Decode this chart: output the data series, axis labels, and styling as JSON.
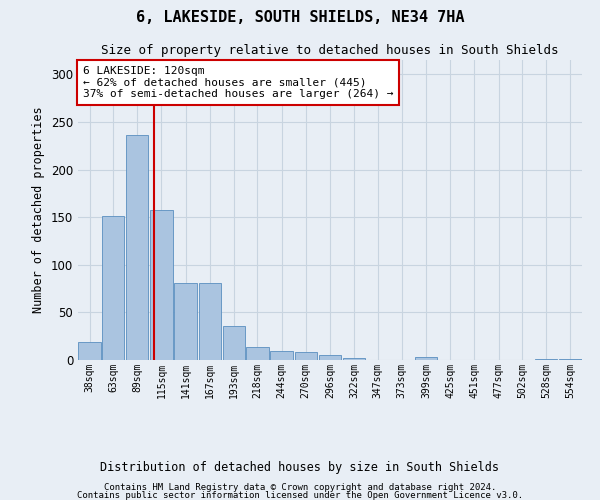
{
  "title": "6, LAKESIDE, SOUTH SHIELDS, NE34 7HA",
  "subtitle": "Size of property relative to detached houses in South Shields",
  "xlabel": "Distribution of detached houses by size in South Shields",
  "ylabel": "Number of detached properties",
  "footer_line1": "Contains HM Land Registry data © Crown copyright and database right 2024.",
  "footer_line2": "Contains public sector information licensed under the Open Government Licence v3.0.",
  "annotation_title": "6 LAKESIDE: 120sqm",
  "annotation_line1": "← 62% of detached houses are smaller (445)",
  "annotation_line2": "37% of semi-detached houses are larger (264) →",
  "property_sqm": 120,
  "bar_edges": [
    38,
    63,
    89,
    115,
    141,
    167,
    193,
    218,
    244,
    270,
    296,
    322,
    347,
    373,
    399,
    425,
    451,
    477,
    502,
    528,
    554
  ],
  "bar_values": [
    19,
    151,
    236,
    157,
    81,
    81,
    36,
    14,
    9,
    8,
    5,
    2,
    0,
    0,
    3,
    0,
    0,
    0,
    0,
    1,
    1
  ],
  "bar_color": "#aac4e0",
  "bar_edge_color": "#5a8fc0",
  "vline_color": "#cc0000",
  "vline_x": 120,
  "annotation_box_color": "#ffffff",
  "annotation_box_edge": "#cc0000",
  "grid_color": "#c8d4e0",
  "bg_color": "#e8eef5",
  "ylim": [
    0,
    315
  ],
  "yticks": [
    0,
    50,
    100,
    150,
    200,
    250,
    300
  ]
}
